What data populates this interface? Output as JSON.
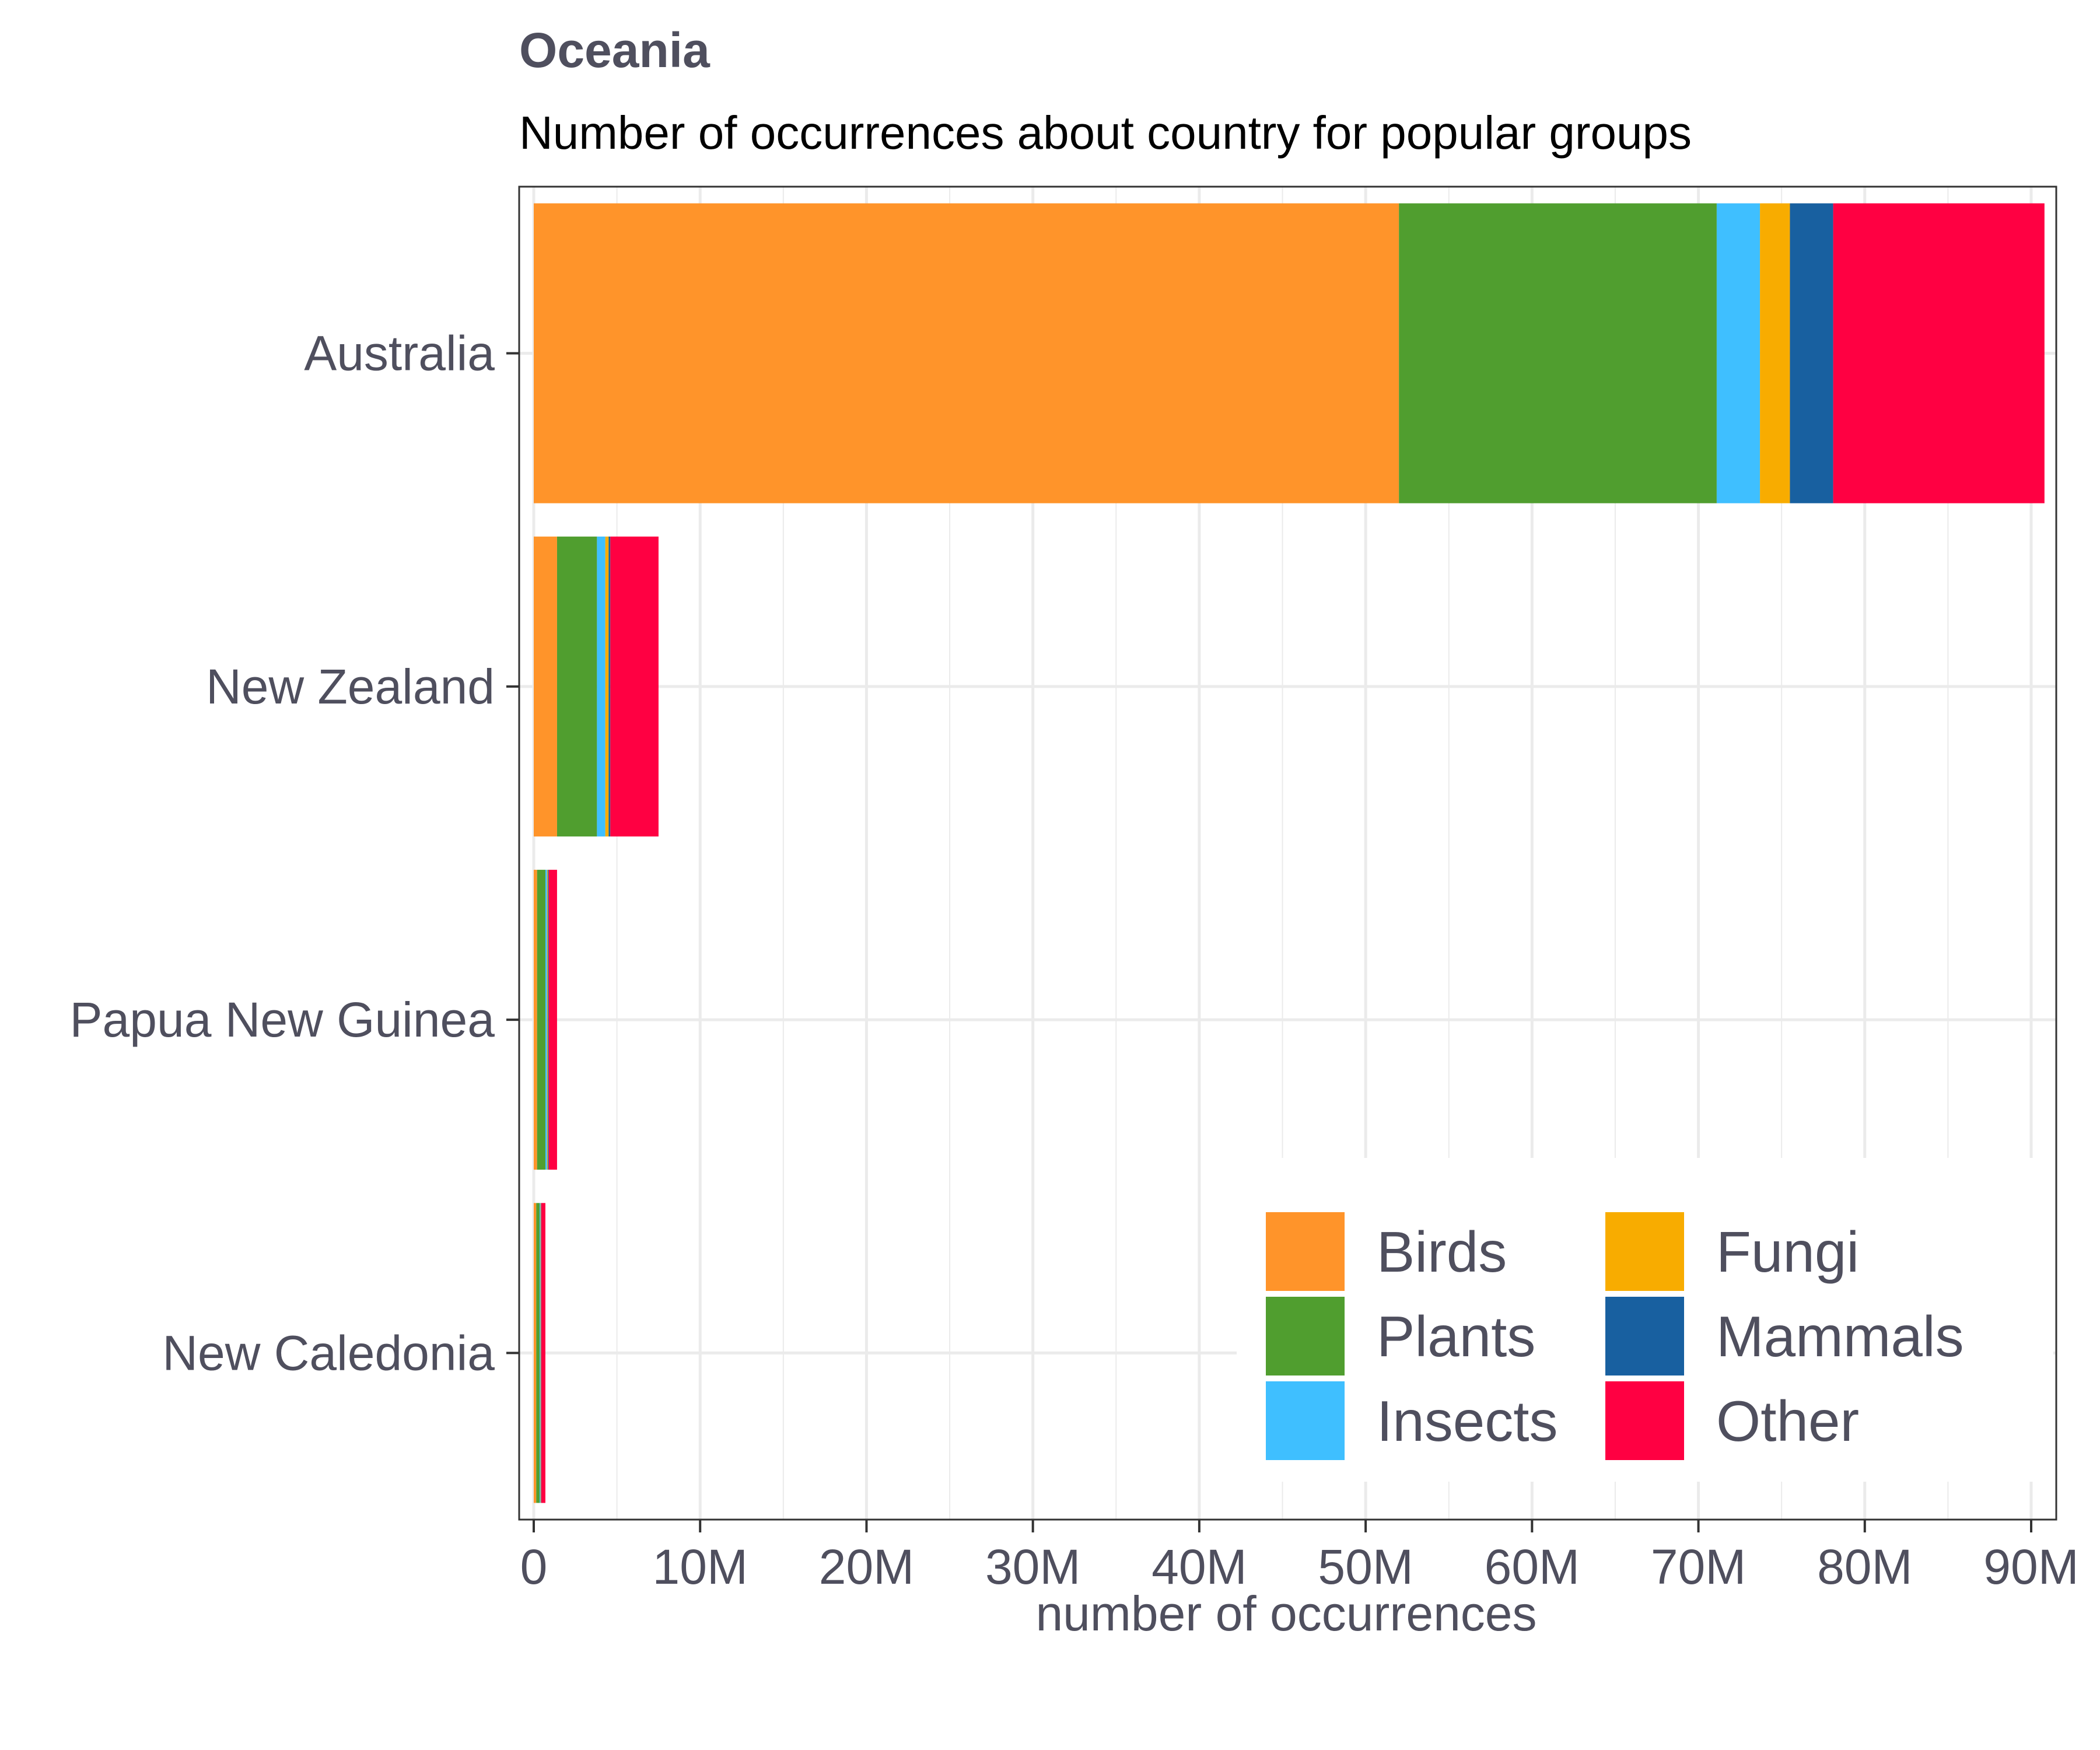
{
  "chart_data": {
    "type": "bar",
    "orientation": "horizontal",
    "stacked": true,
    "title": "Oceania",
    "subtitle": "Number of occurrences about country for popular groups",
    "xlabel": "number of occurrences",
    "ylabel": "",
    "xlim": [
      0,
      91000000
    ],
    "x_ticks": [
      0,
      10000000,
      20000000,
      30000000,
      40000000,
      50000000,
      60000000,
      70000000,
      80000000,
      90000000
    ],
    "x_tick_labels": [
      "0",
      "10M",
      "20M",
      "30M",
      "40M",
      "50M",
      "60M",
      "70M",
      "80M",
      "90M"
    ],
    "categories": [
      "Australia",
      "New Zealand",
      "Papua New Guinea",
      "New Caledonia"
    ],
    "series": [
      {
        "name": "Birds",
        "color": "#ff942a",
        "values": [
          52000000,
          1400000,
          200000,
          150000
        ]
      },
      {
        "name": "Plants",
        "color": "#509e2f",
        "values": [
          19100000,
          2400000,
          500000,
          200000
        ]
      },
      {
        "name": "Insects",
        "color": "#3fbfff",
        "values": [
          2600000,
          500000,
          100000,
          50000
        ]
      },
      {
        "name": "Fungi",
        "color": "#f8ac00",
        "values": [
          1800000,
          200000,
          50000,
          30000
        ]
      },
      {
        "name": "Mammals",
        "color": "#1860a0",
        "values": [
          2600000,
          100000,
          50000,
          20000
        ]
      },
      {
        "name": "Other",
        "color": "#ff0042",
        "values": [
          12700000,
          2900000,
          500000,
          250000
        ]
      }
    ],
    "grid": true,
    "legend_position": "bottom-right",
    "legend_columns": 2
  }
}
